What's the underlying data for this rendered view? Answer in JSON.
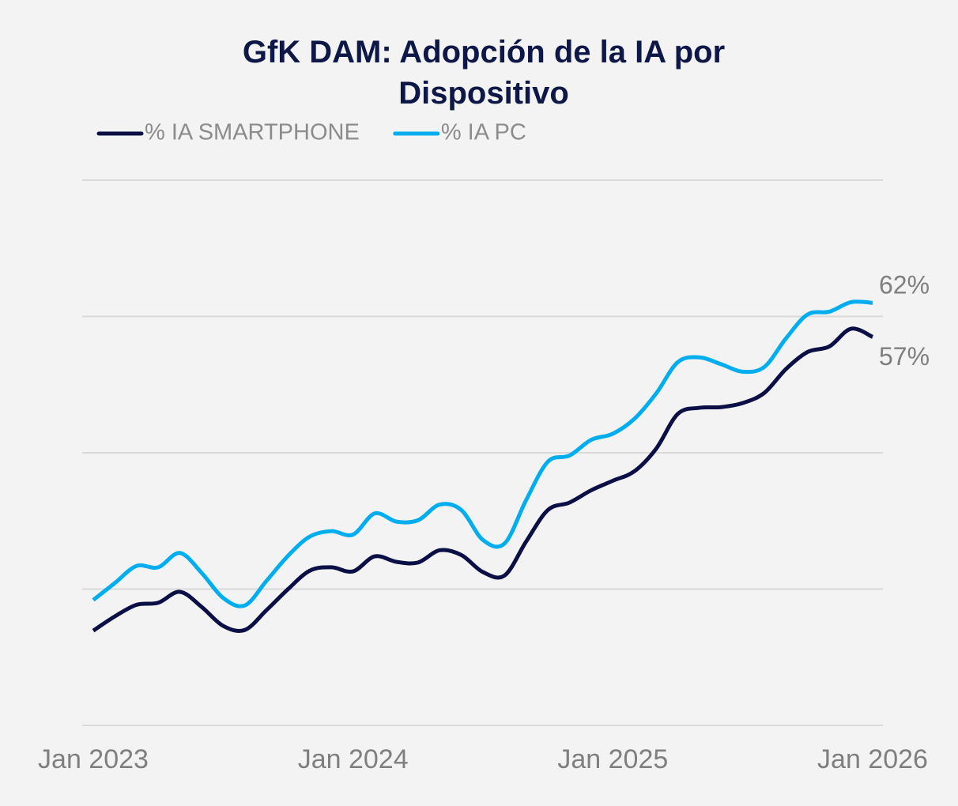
{
  "chart_data": {
    "type": "line",
    "title": "GfK DAM: Adopción de la IA por Dispositivo",
    "x": [
      "2023-01",
      "2023-02",
      "2023-03",
      "2023-04",
      "2023-05",
      "2023-06",
      "2023-07",
      "2023-08",
      "2023-09",
      "2023-10",
      "2023-11",
      "2023-12",
      "2024-01",
      "2024-02",
      "2024-03",
      "2024-04",
      "2024-05",
      "2024-06",
      "2024-07",
      "2024-08",
      "2024-09",
      "2024-10",
      "2024-11",
      "2024-12",
      "2025-01",
      "2025-02",
      "2025-03",
      "2025-04",
      "2025-05",
      "2025-06",
      "2025-07",
      "2025-08",
      "2025-09",
      "2025-10",
      "2025-11",
      "2025-12",
      "2026-01"
    ],
    "series": [
      {
        "name": "% IA SMARTPHONE",
        "color": "#0a0f45",
        "values": [
          13.9,
          16.0,
          17.7,
          18.0,
          19.6,
          17.4,
          14.6,
          14.0,
          16.9,
          20.0,
          22.7,
          23.2,
          22.6,
          24.8,
          24.0,
          23.9,
          25.7,
          25.0,
          22.5,
          22.0,
          27.0,
          31.6,
          32.7,
          34.5,
          35.9,
          37.3,
          40.6,
          45.7,
          46.6,
          46.7,
          47.3,
          48.8,
          52.3,
          54.8,
          55.6,
          58.2,
          57
        ],
        "value_labels": [
          null,
          null,
          null,
          null,
          null,
          null,
          null,
          null,
          null,
          null,
          null,
          null,
          null,
          null,
          null,
          null,
          null,
          null,
          null,
          null,
          null,
          null,
          null,
          null,
          null,
          null,
          null,
          null,
          null,
          null,
          null,
          null,
          null,
          null,
          null,
          null,
          "57%"
        ]
      },
      {
        "name": "% IA PC",
        "color": "#00aeef",
        "values": [
          18.4,
          20.9,
          23.4,
          23.2,
          25.3,
          22.4,
          18.7,
          17.6,
          21.2,
          24.9,
          27.7,
          28.5,
          28.0,
          31.1,
          29.9,
          30.1,
          32.4,
          31.6,
          27.2,
          26.7,
          33.1,
          38.7,
          39.6,
          41.9,
          42.8,
          45.0,
          48.7,
          53.3,
          54.0,
          53.0,
          51.9,
          52.6,
          56.8,
          60.3,
          60.7,
          62.1,
          62
        ],
        "value_labels": [
          null,
          null,
          null,
          null,
          null,
          null,
          null,
          null,
          null,
          null,
          null,
          null,
          null,
          null,
          null,
          null,
          null,
          null,
          null,
          null,
          null,
          null,
          null,
          null,
          null,
          null,
          null,
          null,
          null,
          null,
          null,
          null,
          null,
          null,
          null,
          null,
          "62%"
        ]
      }
    ],
    "xlim": [
      "2023-01",
      "2026-01"
    ],
    "xticks": [
      {
        "value": "2023-01",
        "label": "Jan 2023"
      },
      {
        "value": "2024-01",
        "label": "Jan 2024"
      },
      {
        "value": "2025-01",
        "label": "Jan 2025"
      },
      {
        "value": "2026-01",
        "label": "Jan 2026"
      }
    ],
    "ylim": [
      0,
      80
    ],
    "yticks": [
      0,
      20,
      40,
      60,
      80
    ],
    "grid": true,
    "legend": "top-left"
  }
}
